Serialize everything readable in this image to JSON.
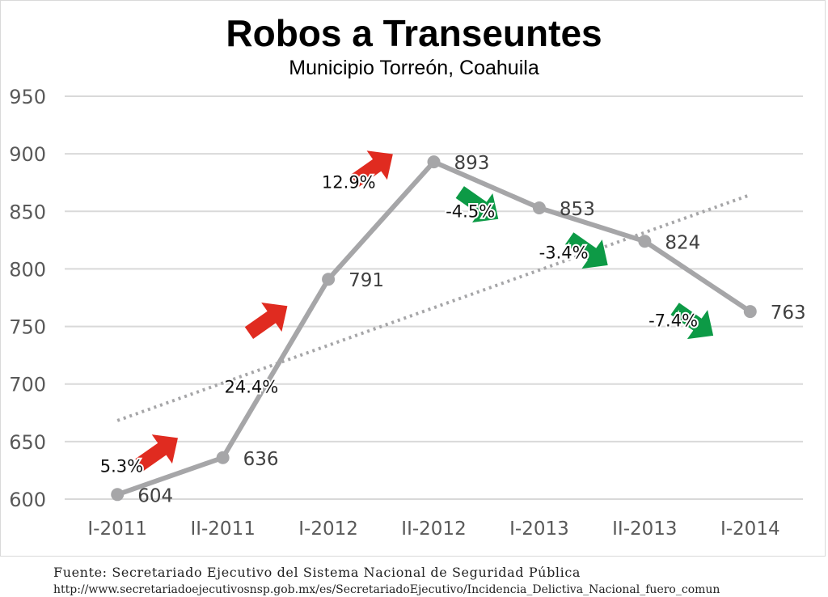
{
  "header": {
    "title": "Robos a Transeuntes",
    "subtitle": "Municipio Torreón, Coahuila"
  },
  "footer": {
    "source": "Fuente: Secretariado Ejecutivo del Sistema Nacional de Seguridad Pública",
    "url": "http://www.secretariadoejecutivosnsp.gob.mx/es/SecretariadoEjecutivo/Incidencia_Delictiva_Nacional_fuero_comun"
  },
  "colors": {
    "line": "#a6a6a8",
    "trendline": "#a6a6a8",
    "grid": "#d9d9d9",
    "increase_arrow": "#e02b20",
    "decrease_arrow": "#0d9a46",
    "axis_text": "#595959",
    "label_text": "#404040"
  },
  "chart_data": {
    "type": "line",
    "title": "Robos a Transeuntes",
    "subtitle": "Municipio Torreón, Coahuila",
    "categories": [
      "I-2011",
      "II-2011",
      "I-2012",
      "II-2012",
      "I-2013",
      "II-2013",
      "I-2014"
    ],
    "series": [
      {
        "values": [
          604,
          636,
          791,
          893,
          853,
          824,
          763
        ],
        "data_labels": [
          "604",
          "636",
          "791",
          "893",
          "853",
          "824",
          "763"
        ]
      }
    ],
    "trendline": {
      "type": "linear",
      "style": "dotted"
    },
    "ylim": [
      600,
      950
    ],
    "yticks": [
      600,
      650,
      700,
      750,
      800,
      850,
      900,
      950
    ],
    "ytick_labels": [
      "600",
      "650",
      "700",
      "750",
      "800",
      "850",
      "900",
      "950"
    ],
    "grid": true,
    "legend": "none",
    "change_annotations": [
      {
        "between": [
          "I-2011",
          "II-2011"
        ],
        "label": "5.3%",
        "direction": "up"
      },
      {
        "between": [
          "II-2011",
          "I-2012"
        ],
        "label": "24.4%",
        "direction": "up"
      },
      {
        "between": [
          "I-2012",
          "II-2012"
        ],
        "label": "12.9%",
        "direction": "up"
      },
      {
        "between": [
          "II-2012",
          "I-2013"
        ],
        "label": "-4.5%",
        "direction": "down"
      },
      {
        "between": [
          "I-2013",
          "II-2013"
        ],
        "label": "-3.4%",
        "direction": "down"
      },
      {
        "between": [
          "II-2013",
          "I-2014"
        ],
        "label": "-7.4%",
        "direction": "down"
      }
    ]
  }
}
